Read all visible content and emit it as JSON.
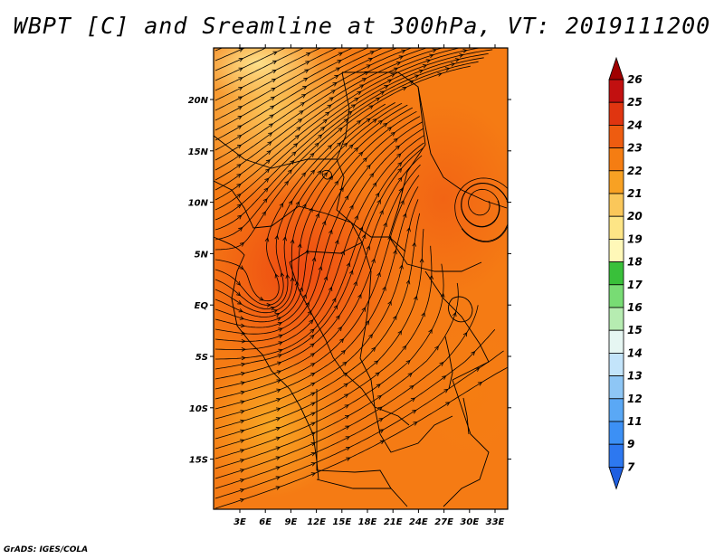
{
  "title": "WBPT [C] and Sreamline at 300hPa, VT: 2019111200",
  "credit": "GrADS: IGES/COLA",
  "map": {
    "lat_labels": [
      "20N",
      "15N",
      "10N",
      "5N",
      "EQ",
      "5S",
      "10S",
      "15S"
    ],
    "lon_labels": [
      "3E",
      "6E",
      "9E",
      "12E",
      "15E",
      "18E",
      "21E",
      "24E",
      "27E",
      "30E",
      "33E"
    ]
  },
  "colorbar": {
    "levels": [
      "7",
      "9",
      "11",
      "12",
      "13",
      "14",
      "15",
      "16",
      "17",
      "18",
      "19",
      "20",
      "21",
      "22",
      "23",
      "24",
      "25",
      "26"
    ],
    "colors": [
      "#1f5fe0",
      "#2d78f0",
      "#3c90f5",
      "#5aa8f5",
      "#8ec6f5",
      "#c3e4fa",
      "#e6f6f2",
      "#b6ecb1",
      "#78dc74",
      "#39c03a",
      "#fff8b8",
      "#fde586",
      "#fac75a",
      "#f8a123",
      "#f57d12",
      "#ee5c10",
      "#e03510",
      "#c21010",
      "#a00000"
    ]
  }
}
